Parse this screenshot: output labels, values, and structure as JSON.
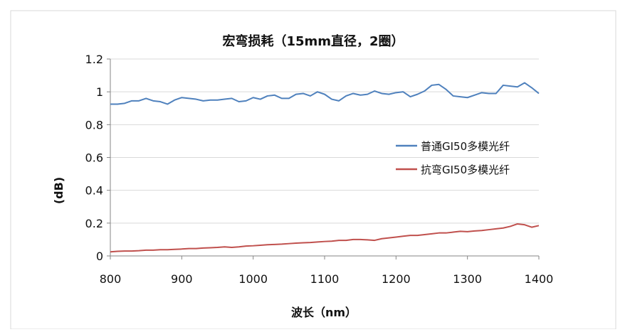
{
  "chart_data": {
    "type": "line",
    "title": "宏弯损耗（15mm直径，2圈）",
    "xlabel": "波长（nm）",
    "ylabel": "(dB)",
    "xlim": [
      800,
      1400
    ],
    "ylim": [
      0,
      1.2
    ],
    "x_ticks": [
      "800",
      "900",
      "1000",
      "1100",
      "1200",
      "1300",
      "1400"
    ],
    "y_ticks": [
      "0",
      "0.2",
      "0.4",
      "0.6",
      "0.8",
      "1",
      "1.2"
    ],
    "grid": "horizontal",
    "legend_position": "right",
    "x": [
      800,
      810,
      820,
      830,
      840,
      850,
      860,
      870,
      880,
      890,
      900,
      910,
      920,
      930,
      940,
      950,
      960,
      970,
      980,
      990,
      1000,
      1010,
      1020,
      1030,
      1040,
      1050,
      1060,
      1070,
      1080,
      1090,
      1100,
      1110,
      1120,
      1130,
      1140,
      1150,
      1160,
      1170,
      1180,
      1190,
      1200,
      1210,
      1220,
      1230,
      1240,
      1250,
      1260,
      1270,
      1280,
      1290,
      1300,
      1310,
      1320,
      1330,
      1340,
      1350,
      1360,
      1370,
      1380,
      1390,
      1400
    ],
    "series": [
      {
        "name": "普通GI50多模光纤",
        "color": "#4F81BD",
        "values": [
          0.925,
          0.925,
          0.93,
          0.945,
          0.945,
          0.96,
          0.945,
          0.94,
          0.925,
          0.95,
          0.965,
          0.96,
          0.955,
          0.945,
          0.95,
          0.95,
          0.955,
          0.96,
          0.94,
          0.945,
          0.965,
          0.955,
          0.975,
          0.98,
          0.96,
          0.96,
          0.985,
          0.99,
          0.975,
          1.0,
          0.985,
          0.955,
          0.945,
          0.975,
          0.99,
          0.98,
          0.985,
          1.005,
          0.99,
          0.985,
          0.995,
          1.0,
          0.97,
          0.985,
          1.005,
          1.04,
          1.045,
          1.015,
          0.975,
          0.97,
          0.965,
          0.98,
          0.995,
          0.99,
          0.99,
          1.04,
          1.035,
          1.03,
          1.055,
          1.025,
          0.99
        ]
      },
      {
        "name": "抗弯GI50多模光纤",
        "color": "#C0504D",
        "values": [
          0.025,
          0.028,
          0.03,
          0.03,
          0.032,
          0.035,
          0.035,
          0.038,
          0.038,
          0.04,
          0.042,
          0.045,
          0.045,
          0.048,
          0.05,
          0.052,
          0.055,
          0.052,
          0.055,
          0.06,
          0.062,
          0.065,
          0.068,
          0.07,
          0.072,
          0.075,
          0.078,
          0.08,
          0.082,
          0.085,
          0.088,
          0.09,
          0.095,
          0.095,
          0.1,
          0.1,
          0.098,
          0.095,
          0.105,
          0.11,
          0.115,
          0.12,
          0.125,
          0.125,
          0.13,
          0.135,
          0.14,
          0.14,
          0.145,
          0.15,
          0.148,
          0.152,
          0.155,
          0.16,
          0.165,
          0.17,
          0.18,
          0.195,
          0.19,
          0.175,
          0.185
        ]
      }
    ]
  }
}
